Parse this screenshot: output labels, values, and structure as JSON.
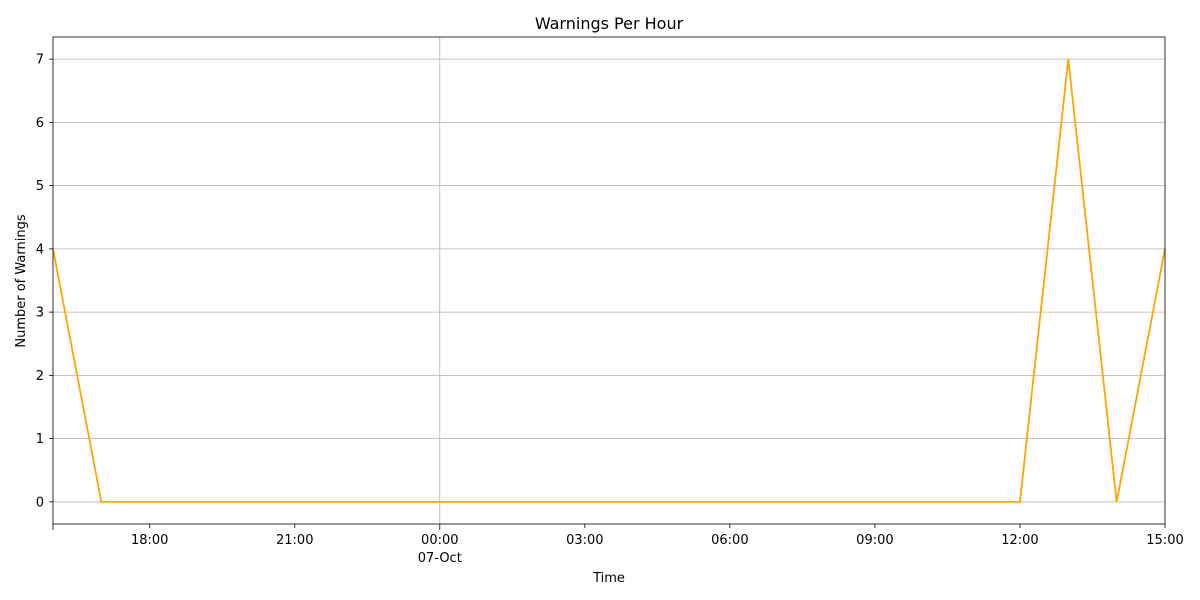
{
  "chart_data": {
    "type": "line",
    "title": "Warnings Per Hour",
    "xlabel": "Time",
    "ylabel": "Number of Warnings",
    "x": [
      "2023-10-06 16:00",
      "2023-10-06 17:00",
      "2023-10-06 18:00",
      "2023-10-06 19:00",
      "2023-10-06 20:00",
      "2023-10-06 21:00",
      "2023-10-06 22:00",
      "2023-10-06 23:00",
      "2023-10-07 00:00",
      "2023-10-07 01:00",
      "2023-10-07 02:00",
      "2023-10-07 03:00",
      "2023-10-07 04:00",
      "2023-10-07 05:00",
      "2023-10-07 06:00",
      "2023-10-07 07:00",
      "2023-10-07 08:00",
      "2023-10-07 09:00",
      "2023-10-07 10:00",
      "2023-10-07 11:00",
      "2023-10-07 12:00",
      "2023-10-07 13:00",
      "2023-10-07 14:00",
      "2023-10-07 15:00"
    ],
    "series": [
      {
        "values": [
          4,
          0,
          0,
          0,
          0,
          0,
          0,
          0,
          0,
          0,
          0,
          0,
          0,
          0,
          0,
          0,
          0,
          0,
          0,
          0,
          0,
          7,
          0,
          4
        ],
        "color": "#ffa500"
      }
    ],
    "xlim": [
      "2023-10-06 16:00",
      "2023-10-07 15:00"
    ],
    "ylim": [
      -0.35,
      7.35
    ],
    "xticks": [
      {
        "x": "2023-10-06 18:00",
        "label": "18:00",
        "sublabel": ""
      },
      {
        "x": "2023-10-06 21:00",
        "label": "21:00",
        "sublabel": ""
      },
      {
        "x": "2023-10-07 00:00",
        "label": "00:00",
        "sublabel": "07-Oct"
      },
      {
        "x": "2023-10-07 03:00",
        "label": "03:00",
        "sublabel": ""
      },
      {
        "x": "2023-10-07 06:00",
        "label": "06:00",
        "sublabel": ""
      },
      {
        "x": "2023-10-07 09:00",
        "label": "09:00",
        "sublabel": ""
      },
      {
        "x": "2023-10-07 12:00",
        "label": "12:00",
        "sublabel": ""
      },
      {
        "x": "2023-10-07 15:00",
        "label": "15:00",
        "sublabel": ""
      }
    ],
    "major_grid_x": [
      "2023-10-07 00:00"
    ],
    "yticks": [
      0,
      1,
      2,
      3,
      4,
      5,
      6,
      7
    ],
    "grid": true
  }
}
